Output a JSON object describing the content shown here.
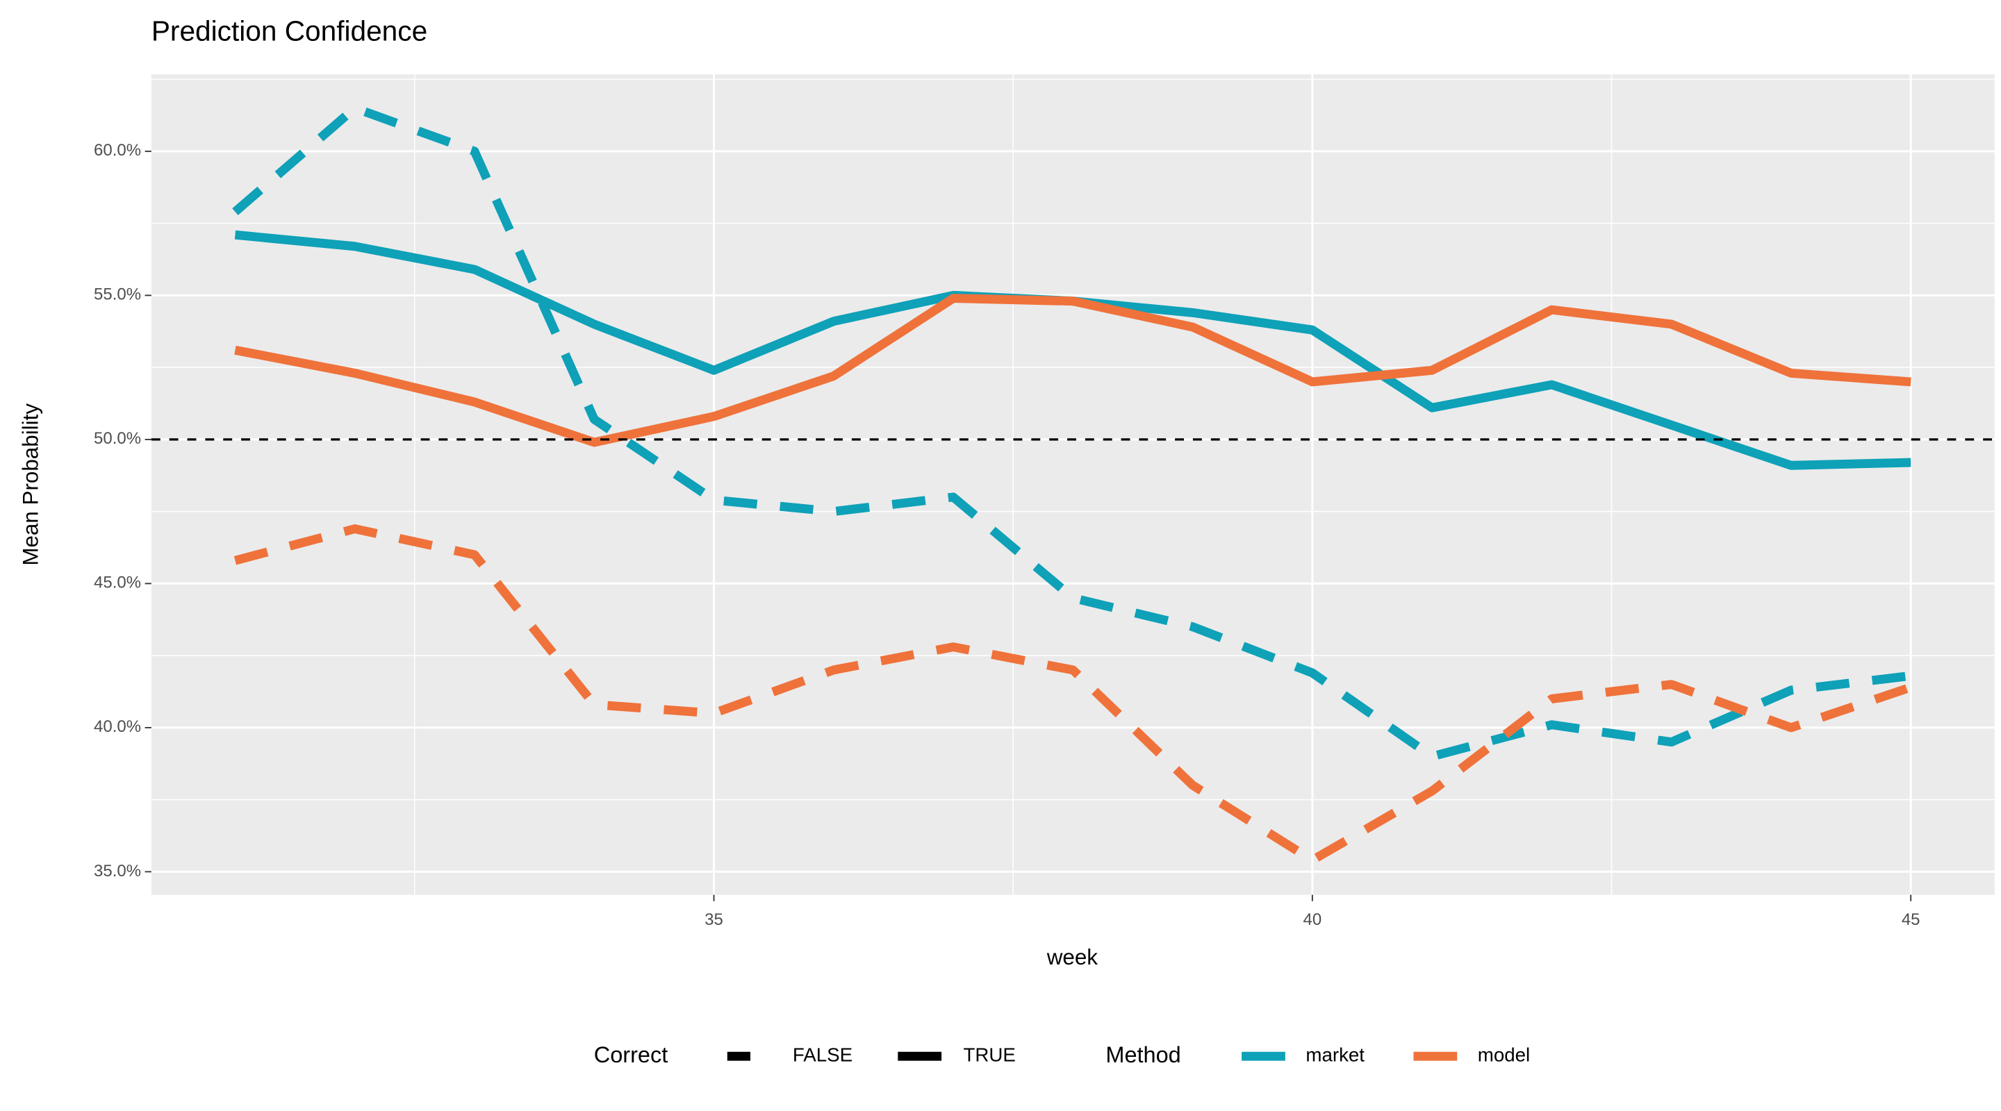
{
  "chart_data": {
    "type": "line",
    "title": "Prediction Confidence",
    "x_label": "week",
    "y_label": "Mean Probability",
    "x": [
      31,
      32,
      33,
      34,
      35,
      36,
      37,
      38,
      39,
      40,
      41,
      42,
      43,
      44,
      45
    ],
    "xlim": [
      30.3,
      45.7
    ],
    "xticks": [
      35,
      40,
      45
    ],
    "ylim": [
      34.2,
      62.67
    ],
    "yticks": [
      {
        "value": 35,
        "label": "35.0%"
      },
      {
        "value": 40,
        "label": "40.0%"
      },
      {
        "value": 45,
        "label": "45.0%"
      },
      {
        "value": 50,
        "label": "50.0%"
      },
      {
        "value": 55,
        "label": "55.0%"
      },
      {
        "value": 60,
        "label": "60.0%"
      }
    ],
    "grid": true,
    "hline": 50,
    "correct_title": "Correct",
    "correct_levels": [
      "FALSE",
      "TRUE"
    ],
    "method_title": "Method",
    "legend": "bottom",
    "series": [
      {
        "name": "market",
        "color": "#0ea1b8",
        "values": {
          "FALSE": [
            57.9,
            61.5,
            60.0,
            50.7,
            47.9,
            47.5,
            48.0,
            44.5,
            43.5,
            41.9,
            39.0,
            40.1,
            39.5,
            41.3,
            41.8
          ],
          "TRUE": [
            57.1,
            56.7,
            55.9,
            54.0,
            52.4,
            54.1,
            55.0,
            54.8,
            54.4,
            53.8,
            51.1,
            51.9,
            50.5,
            49.1,
            49.2
          ]
        }
      },
      {
        "name": "model",
        "color": "#ef723b",
        "values": {
          "FALSE": [
            45.8,
            46.9,
            46.0,
            40.8,
            40.5,
            42.0,
            42.8,
            42.0,
            38.0,
            35.4,
            37.8,
            41.0,
            41.5,
            40.0,
            41.4
          ],
          "TRUE": [
            53.1,
            52.3,
            51.3,
            49.9,
            50.8,
            52.2,
            54.9,
            54.8,
            53.9,
            52.0,
            52.4,
            54.5,
            54.0,
            52.3,
            52.0
          ]
        }
      }
    ]
  }
}
